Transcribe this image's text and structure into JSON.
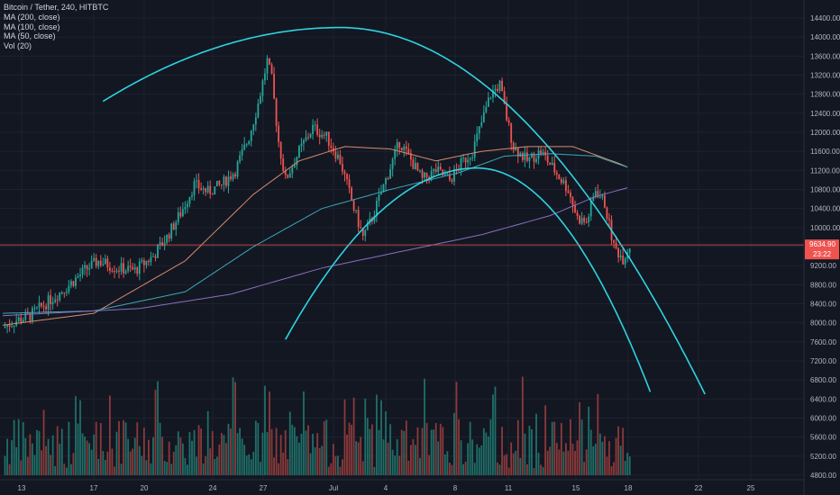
{
  "legend": {
    "title": "Bitcoin / Tether, 240, HITBTC",
    "ma200": "MA (200, close)",
    "ma100": "MA (100, close)",
    "ma50": "MA (50, close)",
    "vol": "Vol (20)"
  },
  "price_tag": {
    "price": "9634.90",
    "countdown": "23:22"
  },
  "colors": {
    "background": "#131722",
    "grid": "#1e2230",
    "up": "#26a69a",
    "down": "#ef5350",
    "up_vol": "#1f6f68",
    "down_vol": "#8b3a3a",
    "ma50": "#d98b6c",
    "ma100": "#3aa8b5",
    "ma200": "#8a6fbf",
    "arc": "#2ed3e0",
    "price_line": "#ef5350"
  },
  "chart_data": {
    "type": "candlestick",
    "y_ticks": [
      "14400.00",
      "14000.00",
      "13600.00",
      "13200.00",
      "12800.00",
      "12400.00",
      "12000.00",
      "11600.00",
      "11200.00",
      "10800.00",
      "10400.00",
      "10000.00",
      "9600.00",
      "9200.00",
      "8800.00",
      "8400.00",
      "8000.00",
      "7600.00",
      "7200.00",
      "6800.00",
      "6400.00",
      "6000.00",
      "5600.00",
      "5200.00",
      "4800.00"
    ],
    "x_ticks": [
      "13",
      "17",
      "20",
      "24",
      "27",
      "Jul",
      "4",
      "8",
      "11",
      "15",
      "18",
      "22",
      "25"
    ],
    "ylim": [
      4800,
      14400
    ],
    "current_price": 9634.9,
    "candle_count": 204,
    "anchors": [
      [
        0,
        7900
      ],
      [
        6,
        8050
      ],
      [
        12,
        8150
      ],
      [
        20,
        8450
      ],
      [
        28,
        8750
      ],
      [
        36,
        9100
      ],
      [
        42,
        9300
      ],
      [
        50,
        9150
      ],
      [
        58,
        9100
      ],
      [
        66,
        9400
      ],
      [
        72,
        9800
      ],
      [
        78,
        10300
      ],
      [
        84,
        10900
      ],
      [
        90,
        10750
      ],
      [
        96,
        10900
      ],
      [
        102,
        11200
      ],
      [
        108,
        11900
      ],
      [
        112,
        12600
      ],
      [
        116,
        13500
      ],
      [
        118,
        13100
      ],
      [
        121,
        11800
      ],
      [
        124,
        11000
      ],
      [
        130,
        11600
      ],
      [
        136,
        12100
      ],
      [
        142,
        11900
      ],
      [
        148,
        11400
      ],
      [
        154,
        10400
      ],
      [
        158,
        9800
      ],
      [
        162,
        10200
      ],
      [
        168,
        11000
      ],
      [
        174,
        11800
      ],
      [
        178,
        11500
      ],
      [
        184,
        11000
      ],
      [
        190,
        11200
      ],
      [
        196,
        11000
      ],
      [
        202,
        11400
      ],
      [
        206,
        11600
      ],
      [
        210,
        12200
      ],
      [
        214,
        12800
      ],
      [
        218,
        13000
      ],
      [
        221,
        12300
      ],
      [
        224,
        11700
      ],
      [
        230,
        11400
      ],
      [
        236,
        11600
      ],
      [
        242,
        11200
      ],
      [
        248,
        10800
      ],
      [
        252,
        10200
      ],
      [
        256,
        10100
      ],
      [
        260,
        10800
      ],
      [
        264,
        10500
      ],
      [
        268,
        9600
      ],
      [
        272,
        9350
      ],
      [
        275,
        9630
      ]
    ],
    "ma50_points": [
      [
        0,
        7950
      ],
      [
        40,
        8200
      ],
      [
        80,
        9300
      ],
      [
        110,
        10700
      ],
      [
        130,
        11400
      ],
      [
        150,
        11700
      ],
      [
        170,
        11650
      ],
      [
        190,
        11400
      ],
      [
        210,
        11600
      ],
      [
        230,
        11700
      ],
      [
        250,
        11700
      ],
      [
        270,
        11350
      ],
      [
        275,
        11250
      ]
    ],
    "ma100_points": [
      [
        0,
        8200
      ],
      [
        40,
        8250
      ],
      [
        80,
        8650
      ],
      [
        110,
        9600
      ],
      [
        140,
        10400
      ],
      [
        170,
        10800
      ],
      [
        200,
        11150
      ],
      [
        220,
        11500
      ],
      [
        240,
        11550
      ],
      [
        260,
        11500
      ],
      [
        275,
        11250
      ]
    ],
    "ma200_points": [
      [
        0,
        8150
      ],
      [
        60,
        8300
      ],
      [
        100,
        8600
      ],
      [
        140,
        9150
      ],
      [
        180,
        9550
      ],
      [
        210,
        9850
      ],
      [
        240,
        10250
      ],
      [
        260,
        10650
      ],
      [
        275,
        10850
      ]
    ],
    "arc_outer": {
      "peak": [
        148,
        14200
      ],
      "left": [
        44,
        12650
      ],
      "right": [
        308,
        6500
      ]
    },
    "arc_inner": {
      "peak": [
        208,
        11250
      ],
      "left": [
        124,
        7650
      ],
      "right": [
        284,
        6550
      ]
    }
  }
}
